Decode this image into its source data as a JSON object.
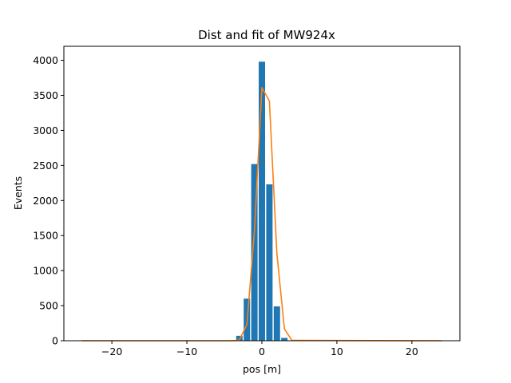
{
  "chart_data": {
    "type": "bar",
    "title": "Dist and fit of MW924x",
    "xlabel": "pos [m]",
    "ylabel": "Events",
    "xlim": [
      -26.4,
      26.4
    ],
    "ylim": [
      0,
      4200
    ],
    "xticks": [
      -20,
      -10,
      0,
      10,
      20
    ],
    "xtick_labels": [
      "−20",
      "−10",
      "0",
      "10",
      "20"
    ],
    "yticks": [
      0,
      500,
      1000,
      1500,
      2000,
      2500,
      3000,
      3500,
      4000
    ],
    "ytick_labels": [
      "0",
      "500",
      "1000",
      "1500",
      "2000",
      "2500",
      "3000",
      "3500",
      "4000"
    ],
    "grid": false,
    "bar_width": 0.85,
    "bars": {
      "x": [
        -3,
        -2,
        -1,
        0,
        1,
        2,
        3
      ],
      "values": [
        70,
        600,
        2520,
        3980,
        2230,
        490,
        40
      ]
    },
    "fit": {
      "x": [
        -24,
        -4,
        -3,
        -2,
        -1,
        0,
        1,
        2,
        3,
        4,
        24
      ],
      "y": [
        0,
        0,
        10,
        230,
        1560,
        3610,
        3420,
        1240,
        170,
        5,
        0
      ]
    },
    "colors": {
      "bars": "#1f77b4",
      "fit": "#ff7f0e"
    }
  }
}
